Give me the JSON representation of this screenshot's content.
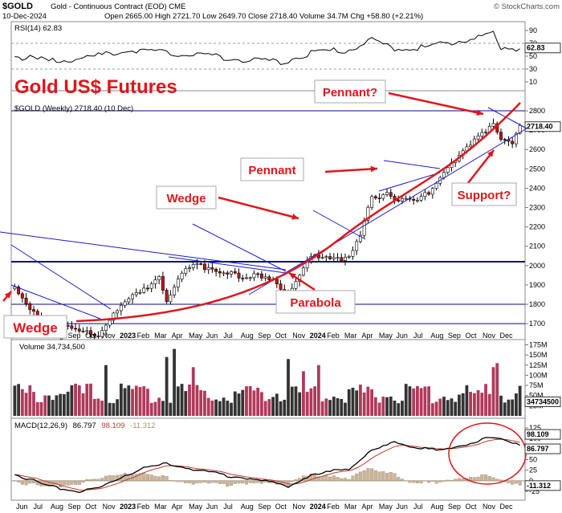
{
  "header": {
    "symbol": "$GOLD",
    "contract": "Gold - Continuous Contract (EOD) CME",
    "date": "10-Dec-2024",
    "ohlc": "Open 2665.00  High 2721.70  Low 2649.70  Close 2718.40  Volume 34.7M  Chg +58.80 (+2.21%)",
    "brand": "© StockCharts.com"
  },
  "annotations": {
    "big_title": "Gold US$ Futures",
    "pennant_q": "Pennant?",
    "pennant": "Pennant",
    "wedge_mid": "Wedge",
    "wedge_left": "Wedge",
    "parabola": "Parabola",
    "support": "Support?"
  },
  "colors": {
    "up": "#ffffff",
    "down": "#cc1111",
    "red": "#e0151b",
    "blue": "#1a1ad0",
    "navy": "#0a0a8a",
    "vol_up": "#333333",
    "vol_down": "#b03a5a",
    "rsi_fill": "#c9b298",
    "hist": "#c9b49a"
  },
  "chart_data": [
    {
      "panel": "price",
      "type": "candlestick",
      "legend": "$GOLD (Weekly) 2718.40 (10 Dec)",
      "last_label": "2718.40",
      "y_ticks": [
        1700,
        1800,
        1900,
        2000,
        2100,
        2200,
        2300,
        2400,
        2500,
        2600,
        2700,
        2800
      ],
      "ylim": [
        1630,
        2850
      ],
      "horizontal_lines": [
        2800,
        2020,
        1800,
        1700
      ],
      "anchors": [
        [
          0,
          1880
        ],
        [
          4,
          1760
        ],
        [
          10,
          1720
        ],
        [
          16,
          1660
        ],
        [
          22,
          1650
        ],
        [
          26,
          1760
        ],
        [
          30,
          1820
        ],
        [
          34,
          1870
        ],
        [
          38,
          1960
        ],
        [
          40,
          1820
        ],
        [
          44,
          1960
        ],
        [
          48,
          2000
        ],
        [
          52,
          1990
        ],
        [
          56,
          1970
        ],
        [
          60,
          1920
        ],
        [
          64,
          1950
        ],
        [
          68,
          1940
        ],
        [
          72,
          1840
        ],
        [
          75,
          1950
        ],
        [
          78,
          2040
        ],
        [
          82,
          2050
        ],
        [
          86,
          2040
        ],
        [
          88,
          2030
        ],
        [
          91,
          2150
        ],
        [
          94,
          2350
        ],
        [
          98,
          2380
        ],
        [
          102,
          2330
        ],
        [
          106,
          2330
        ],
        [
          110,
          2400
        ],
        [
          114,
          2520
        ],
        [
          118,
          2580
        ],
        [
          122,
          2660
        ],
        [
          126,
          2750
        ],
        [
          128,
          2660
        ],
        [
          131,
          2640
        ],
        [
          133,
          2718
        ]
      ],
      "x_labels": [
        "Jun",
        "Jul",
        "Aug",
        "Sep",
        "Oct",
        "Nov",
        "2023",
        "Feb",
        "Mar",
        "Apr",
        "May",
        "Jun",
        "Jul",
        "Aug",
        "Sep",
        "Oct",
        "Nov",
        "2024",
        "Feb",
        "Mar",
        "Apr",
        "May",
        "Jun",
        "Jul",
        "Aug",
        "Sep",
        "Oct",
        "Nov",
        "Dec"
      ]
    },
    {
      "panel": "rsi",
      "type": "line",
      "legend": "RSI(14) 62.83",
      "last_label": "62.83",
      "y_ticks": [
        10,
        30,
        50,
        70,
        90
      ],
      "ylim": [
        0,
        100
      ],
      "anchors": [
        [
          0,
          50
        ],
        [
          10,
          42
        ],
        [
          20,
          48
        ],
        [
          30,
          60
        ],
        [
          40,
          55
        ],
        [
          50,
          52
        ],
        [
          60,
          45
        ],
        [
          70,
          40
        ],
        [
          78,
          56
        ],
        [
          88,
          60
        ],
        [
          94,
          75
        ],
        [
          100,
          62
        ],
        [
          108,
          64
        ],
        [
          114,
          70
        ],
        [
          120,
          78
        ],
        [
          126,
          85
        ],
        [
          128,
          60
        ],
        [
          133,
          62.83
        ]
      ]
    },
    {
      "panel": "volume",
      "type": "bar",
      "legend": "Volume 34,734,500",
      "last_label": "34734500",
      "y_ticks": [
        25,
        50,
        75,
        100,
        125,
        150,
        175
      ],
      "tick_suffix": "M",
      "ylim": [
        0,
        180
      ],
      "base": 55,
      "spikes": [
        [
          24,
          125
        ],
        [
          40,
          145
        ],
        [
          42,
          165
        ],
        [
          47,
          120
        ],
        [
          72,
          140
        ],
        [
          76,
          110
        ],
        [
          80,
          125
        ],
        [
          126,
          120
        ],
        [
          127,
          130
        ]
      ]
    },
    {
      "panel": "macd",
      "type": "line",
      "legend_name": "MACD(12,26,9)",
      "legend_vals": [
        "86.797",
        "98.109",
        "-11.312"
      ],
      "last_labels": [
        "98.109",
        "86.797",
        "-11.312"
      ],
      "y_ticks": [
        -25,
        0,
        25,
        50,
        75,
        100,
        125
      ],
      "ylim": [
        -40,
        140
      ],
      "anchors": [
        [
          0,
          15
        ],
        [
          8,
          -10
        ],
        [
          16,
          -25
        ],
        [
          22,
          -20
        ],
        [
          28,
          10
        ],
        [
          34,
          30
        ],
        [
          40,
          40
        ],
        [
          46,
          30
        ],
        [
          54,
          15
        ],
        [
          62,
          5
        ],
        [
          68,
          -5
        ],
        [
          72,
          -12
        ],
        [
          76,
          5
        ],
        [
          82,
          20
        ],
        [
          88,
          30
        ],
        [
          94,
          70
        ],
        [
          100,
          90
        ],
        [
          106,
          80
        ],
        [
          112,
          70
        ],
        [
          118,
          85
        ],
        [
          124,
          100
        ],
        [
          128,
          98
        ],
        [
          133,
          86.797
        ]
      ]
    }
  ]
}
